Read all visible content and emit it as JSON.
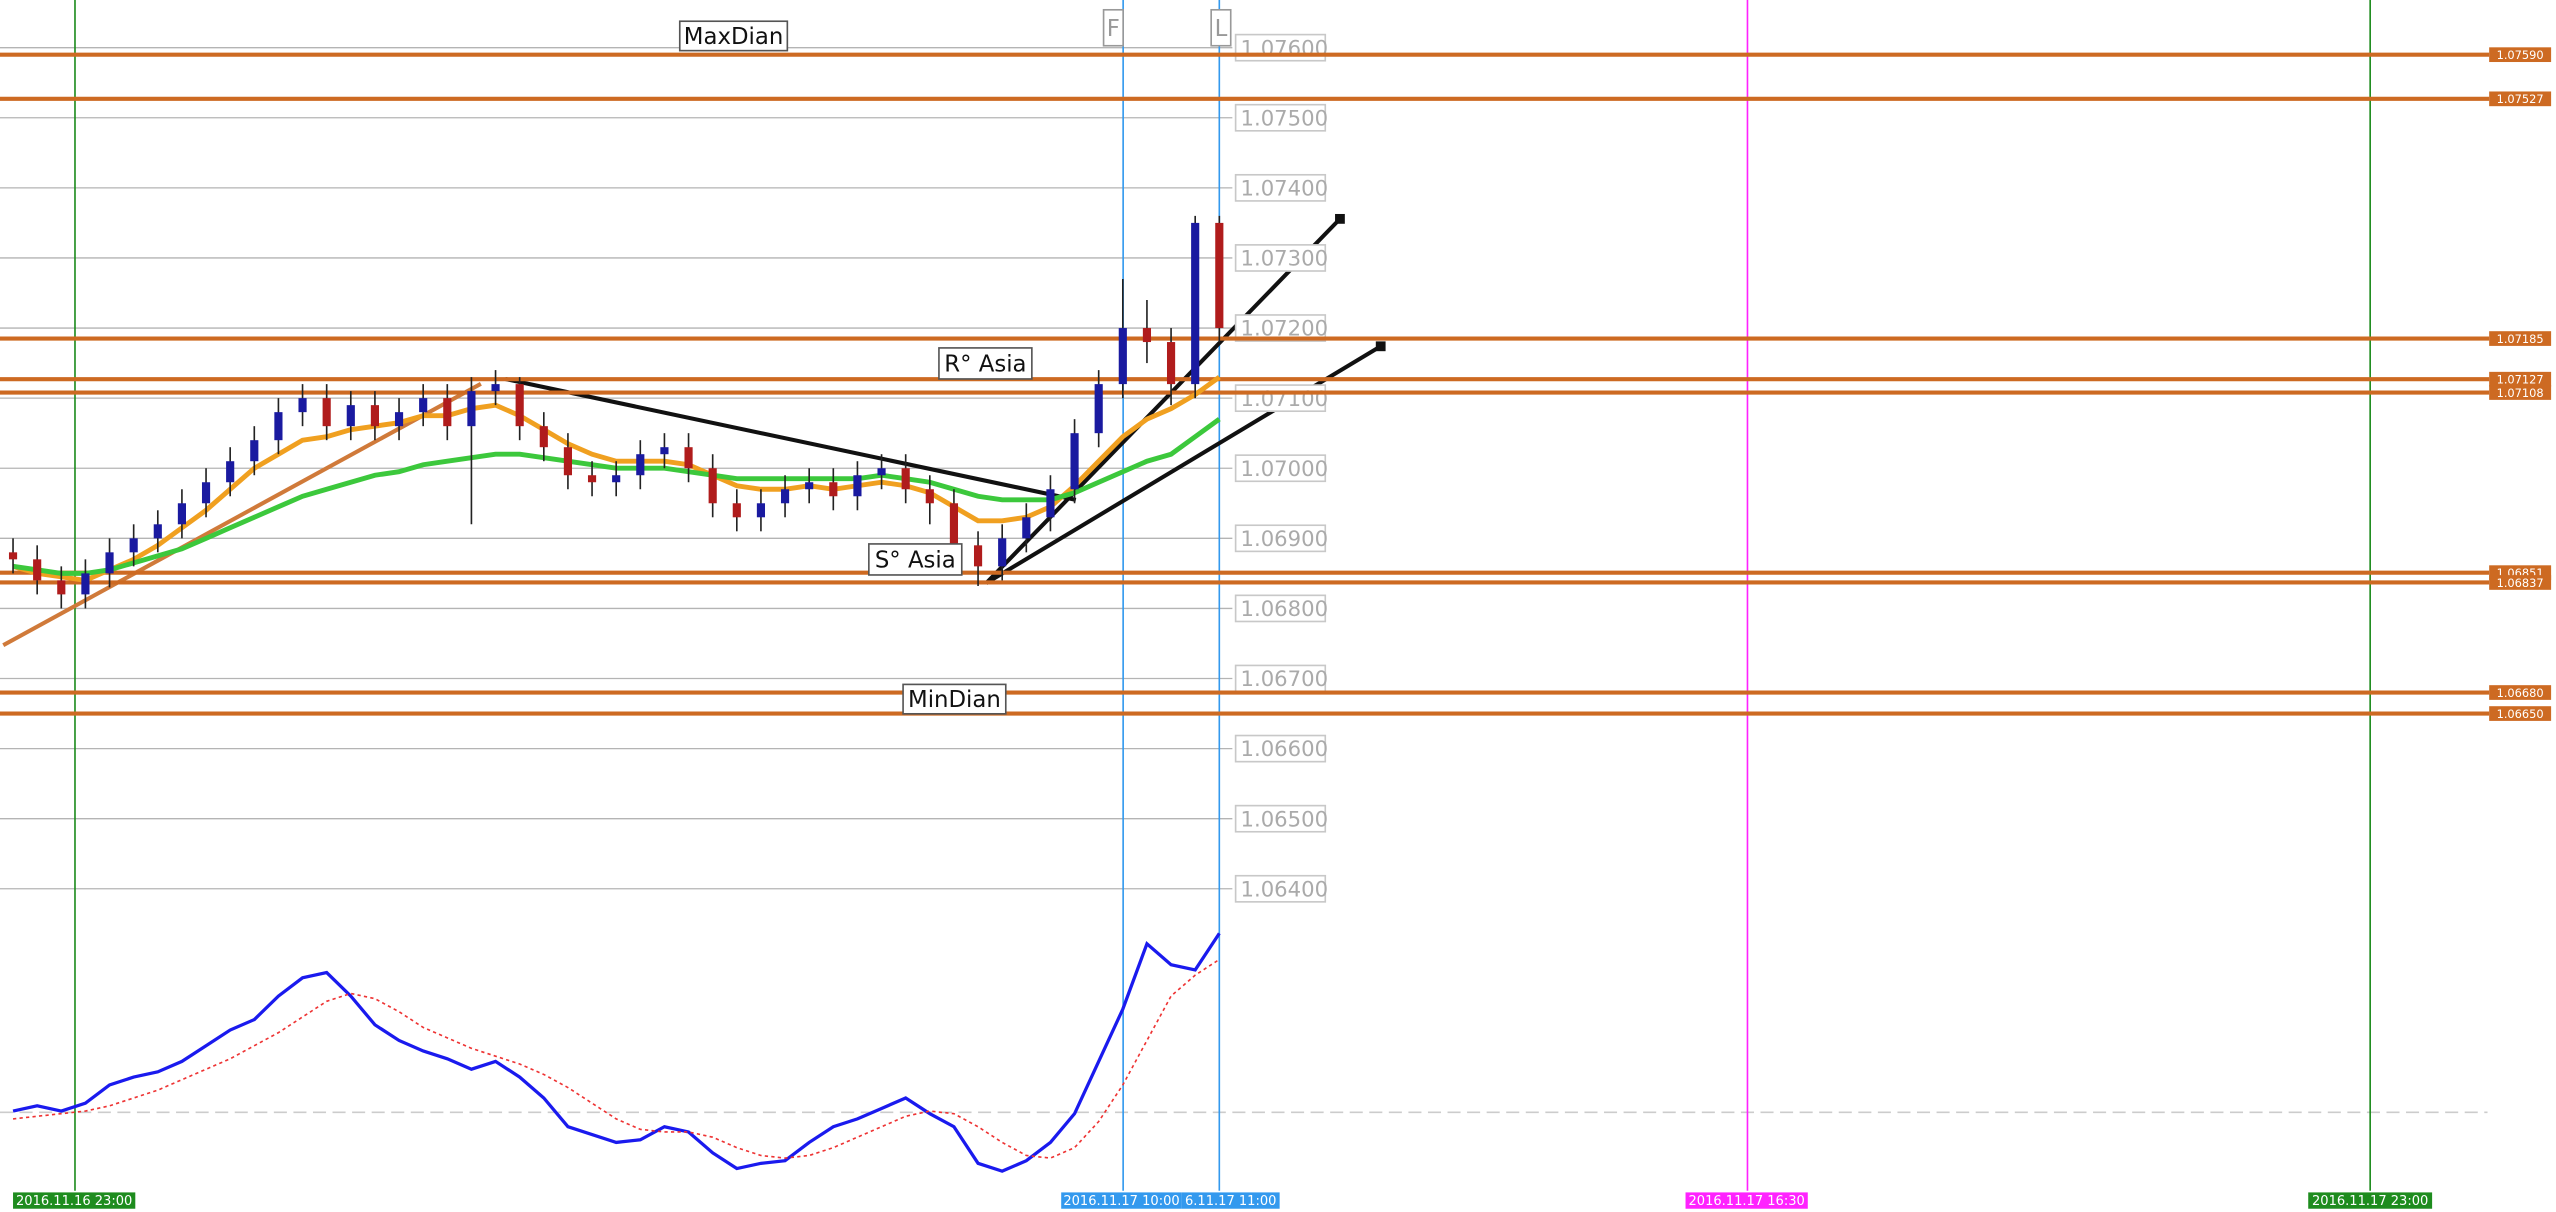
{
  "chart_data": {
    "type": "candlestick",
    "ylim": [
      1.06363,
      1.07668
    ],
    "yticks": [
      {
        "value": 1.076,
        "label": "1.07600"
      },
      {
        "value": 1.075,
        "label": "1.07500"
      },
      {
        "value": 1.074,
        "label": "1.07400"
      },
      {
        "value": 1.073,
        "label": "1.07300"
      },
      {
        "value": 1.072,
        "label": "1.07200"
      },
      {
        "value": 1.071,
        "label": "1.07100"
      },
      {
        "value": 1.07,
        "label": "1.07000"
      },
      {
        "value": 1.069,
        "label": "1.06900"
      },
      {
        "value": 1.068,
        "label": "1.06800"
      },
      {
        "value": 1.067,
        "label": "1.06700"
      },
      {
        "value": 1.066,
        "label": "1.06600"
      },
      {
        "value": 1.065,
        "label": "1.06500"
      },
      {
        "value": 1.064,
        "label": "1.06400"
      }
    ],
    "grid": true,
    "up_color": "#1a1aa0",
    "down_color": "#b01c1c",
    "open": [
      1.0688,
      1.0687,
      1.0684,
      1.0682,
      1.0685,
      1.0688,
      1.069,
      1.0692,
      1.0695,
      1.0698,
      1.0701,
      1.0704,
      1.0708,
      1.071,
      1.0706,
      1.0709,
      1.0706,
      1.0708,
      1.071,
      1.0706,
      1.0711,
      1.0712,
      1.0706,
      1.0703,
      1.0699,
      1.0698,
      1.0699,
      1.0702,
      1.0703,
      1.07,
      1.0695,
      1.0693,
      1.0695,
      1.0697,
      1.0698,
      1.0696,
      1.0699,
      1.07,
      1.0697,
      1.0695,
      1.0689,
      1.0686,
      1.069,
      1.0693,
      1.0697,
      1.0705,
      1.0712,
      1.072,
      1.0718,
      1.0712,
      1.0735
    ],
    "high": [
      1.069,
      1.0689,
      1.0686,
      1.0687,
      1.069,
      1.0692,
      1.0694,
      1.0697,
      1.07,
      1.0703,
      1.0706,
      1.071,
      1.0712,
      1.0712,
      1.0711,
      1.0711,
      1.071,
      1.0712,
      1.0712,
      1.0713,
      1.0714,
      1.0713,
      1.0708,
      1.0705,
      1.0701,
      1.0701,
      1.0704,
      1.0705,
      1.0705,
      1.0702,
      1.0697,
      1.0697,
      1.0699,
      1.07,
      1.07,
      1.0701,
      1.0702,
      1.0702,
      1.0699,
      1.0697,
      1.0691,
      1.0692,
      1.0695,
      1.0699,
      1.0707,
      1.0714,
      1.0727,
      1.0724,
      1.072,
      1.0736,
      1.0736
    ],
    "low": [
      1.0685,
      1.0682,
      1.068,
      1.068,
      1.0683,
      1.0686,
      1.0688,
      1.069,
      1.0693,
      1.0696,
      1.0699,
      1.0702,
      1.0706,
      1.0704,
      1.0704,
      1.0704,
      1.0704,
      1.0706,
      1.0704,
      1.0692,
      1.0709,
      1.0704,
      1.0701,
      1.0697,
      1.0696,
      1.0696,
      1.0697,
      1.07,
      1.0698,
      1.0693,
      1.0691,
      1.0691,
      1.0693,
      1.0695,
      1.0694,
      1.0694,
      1.0697,
      1.0695,
      1.0692,
      1.0687,
      1.06832,
      1.0684,
      1.0688,
      1.0691,
      1.0695,
      1.0703,
      1.071,
      1.0715,
      1.0709,
      1.071,
      1.0718
    ],
    "close": [
      1.0687,
      1.0684,
      1.0682,
      1.0685,
      1.0688,
      1.069,
      1.0692,
      1.0695,
      1.0698,
      1.0701,
      1.0704,
      1.0708,
      1.071,
      1.0706,
      1.0709,
      1.0706,
      1.0708,
      1.071,
      1.0706,
      1.0711,
      1.0712,
      1.0706,
      1.0703,
      1.0699,
      1.0698,
      1.0699,
      1.0702,
      1.0703,
      1.07,
      1.0695,
      1.0693,
      1.0695,
      1.0697,
      1.0698,
      1.0696,
      1.0699,
      1.07,
      1.0697,
      1.0695,
      1.0689,
      1.0686,
      1.069,
      1.0693,
      1.0697,
      1.0705,
      1.0712,
      1.072,
      1.0718,
      1.0712,
      1.0735,
      1.072
    ],
    "series": [
      {
        "color": "#f0a020",
        "values": [
          1.0686,
          1.0685,
          1.06845,
          1.0684,
          1.06855,
          1.0687,
          1.0689,
          1.06915,
          1.0694,
          1.0697,
          1.07,
          1.0702,
          1.0704,
          1.07045,
          1.07055,
          1.0706,
          1.07065,
          1.07075,
          1.07075,
          1.07085,
          1.0709,
          1.07075,
          1.07055,
          1.07035,
          1.0702,
          1.0701,
          1.0701,
          1.0701,
          1.07005,
          1.0699,
          1.06975,
          1.0697,
          1.0697,
          1.06975,
          1.0697,
          1.06975,
          1.0698,
          1.06975,
          1.06965,
          1.06945,
          1.06925,
          1.06925,
          1.0693,
          1.06945,
          1.06975,
          1.0701,
          1.07045,
          1.0707,
          1.07085,
          1.07105,
          1.0713
        ]
      },
      {
        "color": "#3cc83c",
        "values": [
          1.0686,
          1.06855,
          1.0685,
          1.0685,
          1.06855,
          1.06865,
          1.06875,
          1.06885,
          1.069,
          1.06915,
          1.0693,
          1.06945,
          1.0696,
          1.0697,
          1.0698,
          1.0699,
          1.06995,
          1.07005,
          1.0701,
          1.07015,
          1.0702,
          1.0702,
          1.07015,
          1.0701,
          1.07005,
          1.07,
          1.07,
          1.07,
          1.06995,
          1.0699,
          1.06985,
          1.06985,
          1.06985,
          1.06985,
          1.06985,
          1.06985,
          1.0699,
          1.06985,
          1.0698,
          1.0697,
          1.0696,
          1.06955,
          1.06955,
          1.06955,
          1.06965,
          1.0698,
          1.06995,
          1.0701,
          1.0702,
          1.07045,
          1.0707
        ]
      }
    ],
    "levels": [
      {
        "value": 1.0759,
        "label": "1.07590"
      },
      {
        "value": 1.07527,
        "label": "1.07527"
      },
      {
        "value": 1.07185,
        "label": "1.07185"
      },
      {
        "value": 1.07127,
        "label": "1.07127"
      },
      {
        "value": 1.07108,
        "label": "1.07108"
      },
      {
        "value": 1.06851,
        "label": "1.06851"
      },
      {
        "value": 1.06837,
        "label": "1.06837"
      },
      {
        "value": 1.0668,
        "label": "1.06680"
      },
      {
        "value": 1.0665,
        "label": "1.06650"
      }
    ],
    "level_color": "#cd6a22",
    "annotations": [
      "MaxDian",
      "R° Asia",
      "S° Asia",
      "MinDian",
      "F",
      "L"
    ],
    "time_markers": [
      {
        "label": "2016.11.16 23:00",
        "color": "#1e8c1e"
      },
      {
        "label": "2016.11.17 10:00",
        "color": "#3399ee"
      },
      {
        "label": "6.11.17 11:00",
        "color": "#3399ee"
      },
      {
        "label": "2016.11.17 16:30",
        "color": "#ff22ff"
      },
      {
        "label": "2016.11.17 23:00",
        "color": "#1e8c1e"
      }
    ],
    "oscillator": {
      "ylim": [
        0,
        100
      ],
      "series": [
        {
          "color": "#1a1aee",
          "values": [
            28,
            30,
            28,
            31,
            38,
            41,
            43,
            47,
            53,
            59,
            63,
            72,
            79,
            81,
            72,
            61,
            55,
            51,
            48,
            44,
            47,
            41,
            33,
            22,
            19,
            16,
            17,
            22,
            20,
            12,
            6,
            8,
            9,
            16,
            22,
            25,
            29,
            33,
            27,
            22,
            8,
            5,
            9,
            16,
            27,
            47,
            67,
            92,
            84,
            82,
            96
          ]
        },
        {
          "color": "#ee3333",
          "values": [
            25,
            26,
            27,
            28,
            30,
            33,
            36,
            40,
            44,
            48,
            53,
            58,
            64,
            70,
            73,
            71,
            66,
            60,
            56,
            52,
            49,
            46,
            42,
            37,
            31,
            25,
            21,
            20,
            20,
            18,
            14,
            11,
            10,
            11,
            14,
            18,
            22,
            26,
            28,
            27,
            22,
            16,
            11,
            10,
            14,
            24,
            38,
            55,
            72,
            80,
            86
          ]
        }
      ]
    }
  }
}
